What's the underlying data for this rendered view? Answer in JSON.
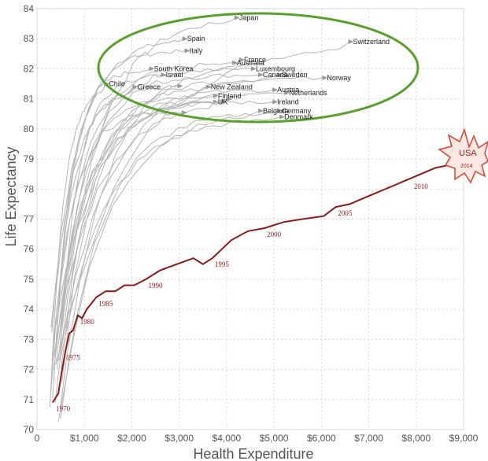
{
  "chart_data": {
    "type": "line",
    "xlabel": "Health Expenditure",
    "ylabel": "Life Expectancy",
    "xlim": [
      0,
      9000
    ],
    "ylim": [
      70,
      84
    ],
    "x_ticks": [
      0,
      1000,
      2000,
      3000,
      4000,
      5000,
      6000,
      7000,
      8000,
      9000
    ],
    "x_tick_labels": [
      "0",
      "$1,000",
      "$2,000",
      "$3,000",
      "$4,000",
      "$5,000",
      "$6,000",
      "$7,000",
      "$8,000",
      "$9,000"
    ],
    "y_ticks": [
      70,
      71,
      72,
      73,
      74,
      75,
      76,
      77,
      78,
      79,
      80,
      81,
      82,
      83,
      84
    ],
    "grid": true,
    "colors": {
      "usa": "#8b1a1a",
      "others": "#b5b5b5",
      "ellipse": "#5aa02c",
      "burst_fill": "#fde8e4",
      "burst_stroke": "#e0412f"
    },
    "highlight": {
      "name": "USA",
      "end_label": "2014",
      "points": [
        [
          330,
          70.9
        ],
        [
          450,
          71.2
        ],
        [
          520,
          71.9
        ],
        [
          600,
          72.6
        ],
        [
          680,
          73.2
        ],
        [
          760,
          73.3
        ],
        [
          860,
          73.8
        ],
        [
          950,
          73.7
        ],
        [
          1050,
          74.0
        ],
        [
          1150,
          74.2
        ],
        [
          1250,
          74.4
        ],
        [
          1450,
          74.6
        ],
        [
          1650,
          74.6
        ],
        [
          1850,
          74.8
        ],
        [
          2050,
          74.8
        ],
        [
          2300,
          75.0
        ],
        [
          2600,
          75.3
        ],
        [
          2950,
          75.5
        ],
        [
          3300,
          75.7
        ],
        [
          3500,
          75.5
        ],
        [
          3700,
          75.7
        ],
        [
          3900,
          76.0
        ],
        [
          4100,
          76.3
        ],
        [
          4450,
          76.6
        ],
        [
          4800,
          76.7
        ],
        [
          5200,
          76.9
        ],
        [
          5600,
          77.0
        ],
        [
          6050,
          77.1
        ],
        [
          6300,
          77.4
        ],
        [
          6600,
          77.5
        ],
        [
          6900,
          77.7
        ],
        [
          7200,
          77.9
        ],
        [
          7500,
          78.1
        ],
        [
          7800,
          78.3
        ],
        [
          8100,
          78.5
        ],
        [
          8400,
          78.7
        ],
        [
          8700,
          78.8
        ],
        [
          9024,
          78.8
        ]
      ],
      "year_labels": [
        {
          "year": "1970",
          "x": 350,
          "y": 70.9
        },
        {
          "year": "1975",
          "x": 560,
          "y": 72.6
        },
        {
          "year": "1980",
          "x": 860,
          "y": 73.8
        },
        {
          "year": "1985",
          "x": 1250,
          "y": 74.4
        },
        {
          "year": "1990",
          "x": 2300,
          "y": 75.0
        },
        {
          "year": "1995",
          "x": 3700,
          "y": 75.7
        },
        {
          "year": "2000",
          "x": 4800,
          "y": 76.7
        },
        {
          "year": "2005",
          "x": 6300,
          "y": 77.4
        },
        {
          "year": "2010",
          "x": 7900,
          "y": 78.3
        }
      ]
    },
    "series": [
      {
        "name": "Japan",
        "end": [
          4200,
          83.7
        ]
      },
      {
        "name": "Spain",
        "end": [
          3100,
          83.0
        ]
      },
      {
        "name": "Italy",
        "end": [
          3150,
          82.6
        ]
      },
      {
        "name": "Switzerland",
        "end": [
          6600,
          82.9
        ]
      },
      {
        "name": "France",
        "end": [
          4300,
          82.3
        ]
      },
      {
        "name": "Australia",
        "end": [
          4150,
          82.2
        ]
      },
      {
        "name": "Luxembourg",
        "end": [
          4550,
          82.0
        ]
      },
      {
        "name": "Canada",
        "end": [
          4700,
          81.8
        ]
      },
      {
        "name": "Sweden",
        "end": [
          5100,
          81.8
        ]
      },
      {
        "name": "South Korea",
        "end": [
          2400,
          82.0
        ]
      },
      {
        "name": "Israel",
        "end": [
          2650,
          81.8
        ]
      },
      {
        "name": "Norway",
        "end": [
          6050,
          81.7
        ]
      },
      {
        "name": "Chile",
        "end": [
          1450,
          81.5
        ]
      },
      {
        "name": "Greece",
        "end": [
          2050,
          81.4
        ]
      },
      {
        "name": "New Zealand",
        "end": [
          3600,
          81.4
        ]
      },
      {
        "name": "Austria",
        "end": [
          5000,
          81.3
        ]
      },
      {
        "name": "Netherlands",
        "end": [
          5250,
          81.2
        ]
      },
      {
        "name": "Finland",
        "end": [
          3750,
          81.1
        ]
      },
      {
        "name": "UK",
        "end": [
          3750,
          80.9
        ]
      },
      {
        "name": "Ireland",
        "end": [
          5000,
          80.9
        ]
      },
      {
        "name": "Belgium",
        "end": [
          4700,
          80.6
        ]
      },
      {
        "name": "Germany",
        "end": [
          5100,
          80.6
        ]
      },
      {
        "name": "Denmark",
        "end": [
          5150,
          80.4
        ]
      }
    ],
    "extra_lines": 4,
    "annotation": "ellipse around high life-expectancy countries"
  }
}
